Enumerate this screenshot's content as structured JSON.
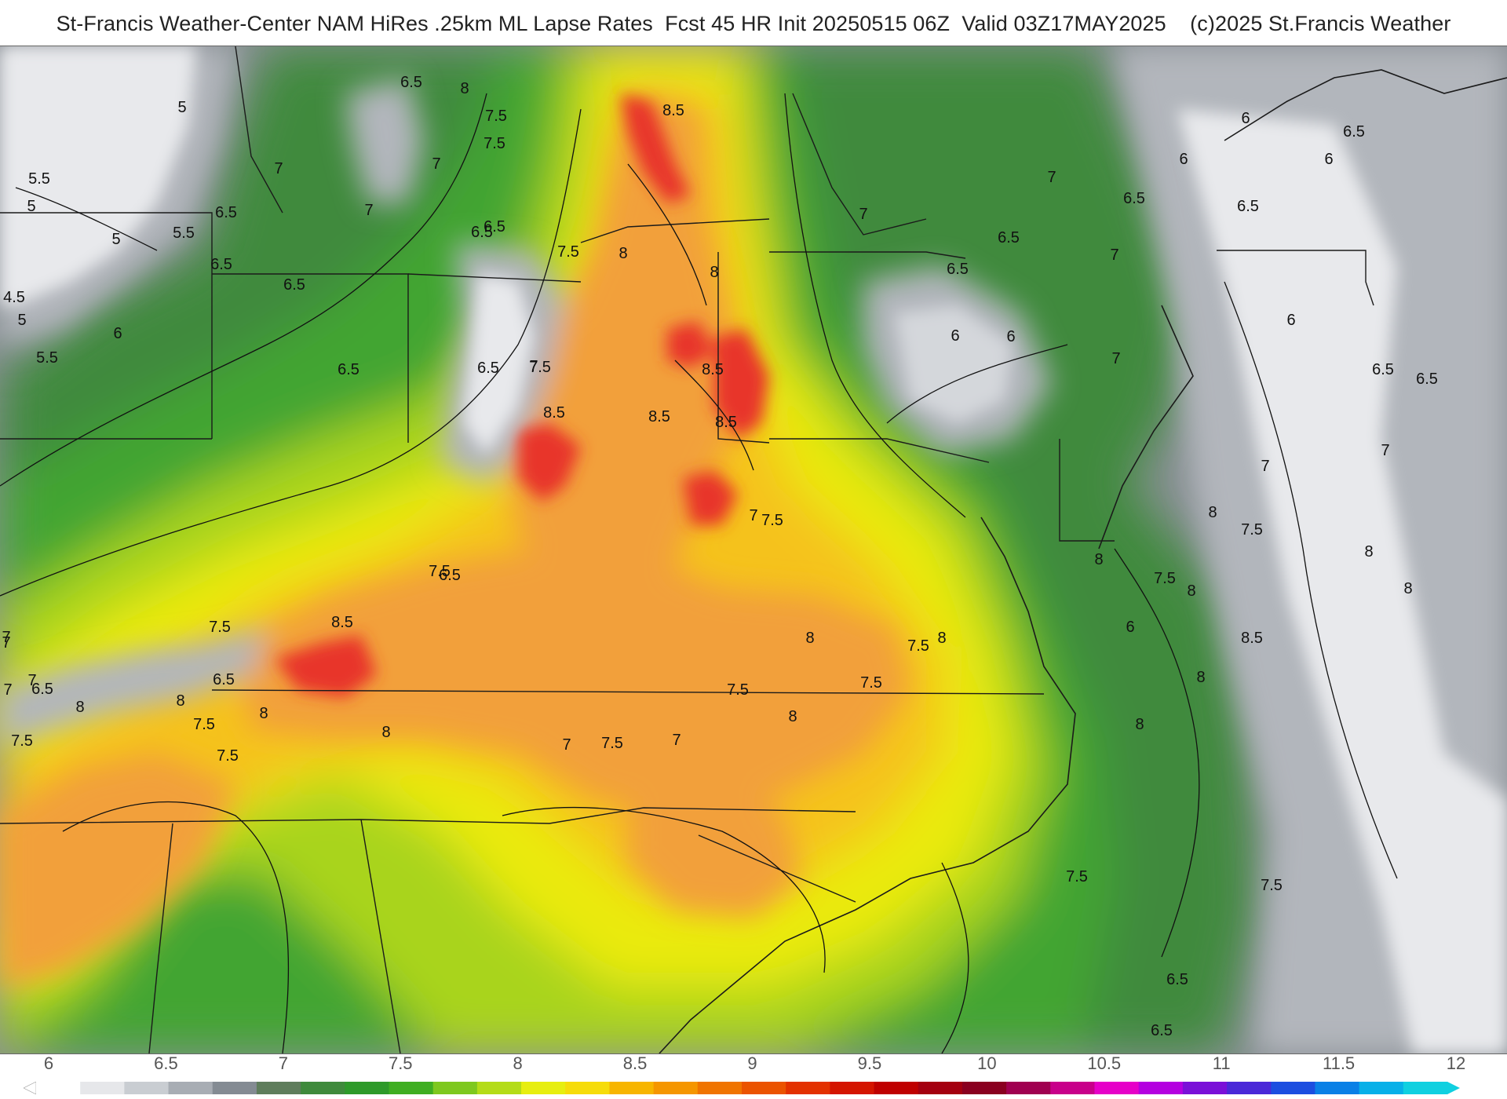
{
  "header": {
    "title": "St-Francis Weather-Center NAM HiRes .25km ML Lapse Rates  Fcst 45 HR Init 20250515 06Z  Valid 03Z17MAY2025    (c)2025 St.Francis Weather"
  },
  "legend": {
    "ticks": [
      "6",
      "6.5",
      "7",
      "7.5",
      "8",
      "8.5",
      "9",
      "9.5",
      "10",
      "10.5",
      "11",
      "11.5",
      "12"
    ],
    "colors": [
      "#ffffff",
      "#e6e7ea",
      "#c9cdd2",
      "#a8adb4",
      "#848b93",
      "#5f7d5c",
      "#3f8a3c",
      "#2e9a2a",
      "#3fae22",
      "#7ec81f",
      "#b4dc18",
      "#e7ee10",
      "#f6dc0a",
      "#f7b500",
      "#f59600",
      "#f07400",
      "#eb5300",
      "#e33100",
      "#d41500",
      "#bf0000",
      "#a40010",
      "#8a0020",
      "#a00050",
      "#c8008a",
      "#e600c8",
      "#b400e0",
      "#7a10d8",
      "#4a28d8",
      "#1c4ee0",
      "#0a80e6",
      "#08b0e8",
      "#10d0e0"
    ]
  },
  "map": {
    "field": "ML Lapse Rates",
    "palette": {
      "gray_light": "#e8e9ec",
      "gray_mid": "#b2b6bc",
      "gray_dark": "#8a9096",
      "green_dark": "#3c8a3a",
      "green": "#41a832",
      "yellow_green": "#a9d41c",
      "yellow": "#eaea10",
      "orange_light": "#f5c21a",
      "orange": "#f2a03a",
      "red": "#e8342a"
    },
    "contour_labels": [
      "8.5",
      "8",
      "7.5",
      "6.5",
      "5",
      "5.5",
      "5",
      "7",
      "7.5",
      "7",
      "6.5",
      "5.5",
      "5",
      "6.5",
      "7",
      "6.5",
      "4.5",
      "5",
      "6",
      "5.5",
      "6.5",
      "6.5",
      "7.5",
      "8",
      "8",
      "8.5",
      "8.5",
      "8.5",
      "8.5",
      "8.5",
      "7.5",
      "7",
      "6.5",
      "6.5",
      "7",
      "6.5",
      "6.5",
      "6.5",
      "6",
      "6",
      "6",
      "6.5",
      "6.5",
      "6",
      "6",
      "6",
      "7",
      "7",
      "7",
      "6.5",
      "6.5",
      "7",
      "7",
      "7.5",
      "8",
      "8",
      "7.5",
      "8",
      "8",
      "8.5",
      "8",
      "8",
      "8",
      "8",
      "8",
      "8",
      "7.5",
      "7",
      "7",
      "7.5",
      "7.5",
      "6.5",
      "7",
      "7.5",
      "7.5",
      "7.5",
      "8",
      "8",
      "7.5",
      "7.5",
      "8",
      "8",
      "7.5",
      "7.5",
      "7",
      "7",
      "7",
      "7",
      "6.5",
      "6.5",
      "6",
      "7.5",
      "7.5",
      "6.5",
      "6.5",
      "7"
    ]
  }
}
